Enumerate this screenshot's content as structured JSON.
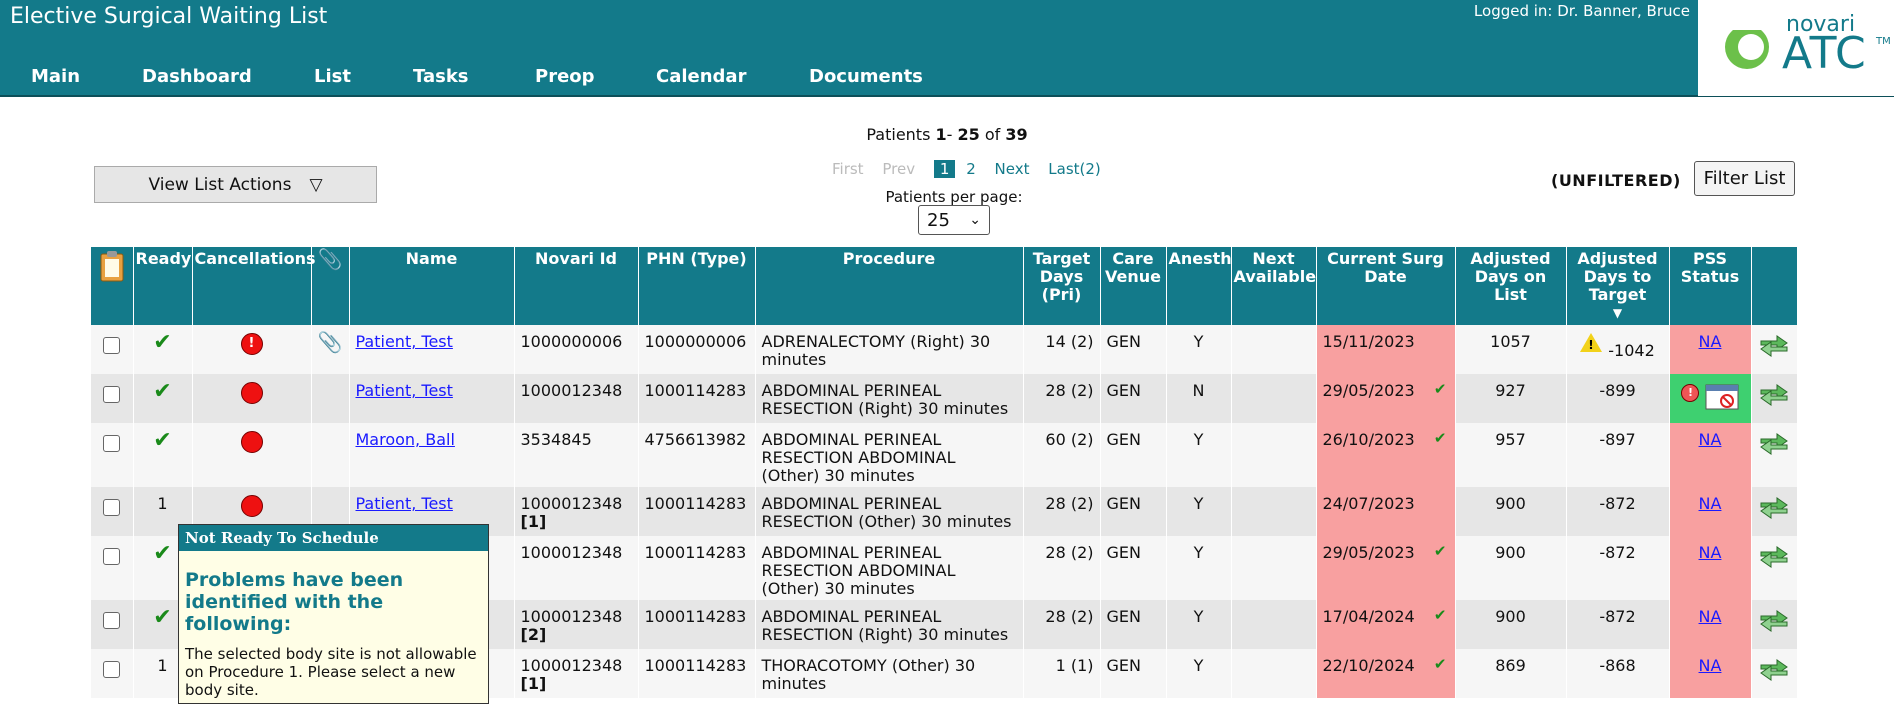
{
  "app": {
    "title": "Elective Surgical Waiting List",
    "logged_in": "Logged in: Dr. Banner, Bruce",
    "logo_top": "novari",
    "logo_bottom": "ATC",
    "logo_tm": "TM"
  },
  "nav": [
    "Main",
    "Dashboard",
    "List",
    "Tasks",
    "Preop",
    "Calendar",
    "Documents"
  ],
  "pager": {
    "label": "Patients",
    "from": "1",
    "to": "25",
    "of_word": "of",
    "total": "39",
    "first": "First",
    "prev": "Prev",
    "pages": [
      "1",
      "2"
    ],
    "next": "Next",
    "last": "Last(2)",
    "per_page_label": "Patients per page:",
    "per_page_value": "25"
  },
  "toolbar": {
    "view_actions": "View List Actions",
    "view_actions_icon": "triangle-down",
    "unfiltered": "(UNFILTERED)",
    "filter": "Filter List"
  },
  "columns": {
    "ready": "Ready",
    "cancellations": "Cancellations",
    "name": "Name",
    "novari_id": "Novari Id",
    "phn": "PHN (Type)",
    "procedure": "Procedure",
    "target_days": "Target Days (Pri)",
    "care_venue": "Care Venue",
    "anesth": "Anesth",
    "next_available": "Next Available",
    "current_surg_date": "Current Surg Date",
    "adjusted_days": "Adjusted Days on List",
    "adjusted_days_target": "Adjusted Days to Target",
    "pss_status": "PSS Status"
  },
  "rows": [
    {
      "ready": "check",
      "cancel": "!",
      "clip": true,
      "name": "Patient, Test",
      "novari": "1000000006",
      "novari_tag": "",
      "phn": "1000000006",
      "procedure": "ADRENALECTOMY (Right) 30 minutes",
      "target": "14 (2)",
      "venue": "GEN",
      "anesth": "Y",
      "surg_date": "15/11/2023",
      "surg_check": false,
      "adj_days": "1057",
      "adj_target": "-1042",
      "adj_warn": true,
      "pss": "NA",
      "pss_color": "pink"
    },
    {
      "ready": "check",
      "cancel": "",
      "clip": false,
      "name": "Patient, Test",
      "novari": "1000012348",
      "novari_tag": "",
      "phn": "1000114283",
      "procedure": "ABDOMINAL PERINEAL RESECTION (Right) 30 minutes",
      "target": "28 (2)",
      "venue": "GEN",
      "anesth": "N",
      "surg_date": "29/05/2023",
      "surg_check": true,
      "adj_days": "927",
      "adj_target": "-899",
      "adj_warn": false,
      "pss": "",
      "pss_color": "green"
    },
    {
      "ready": "check",
      "cancel": "",
      "clip": false,
      "name": "Maroon, Ball",
      "novari": "3534845",
      "novari_tag": "",
      "phn": "4756613982",
      "procedure": "ABDOMINAL PERINEAL RESECTION ABDOMINAL (Other) 30 minutes",
      "target": "60 (2)",
      "venue": "GEN",
      "anesth": "Y",
      "surg_date": "26/10/2023",
      "surg_check": true,
      "adj_days": "957",
      "adj_target": "-897",
      "adj_warn": false,
      "pss": "NA",
      "pss_color": "pink"
    },
    {
      "ready": "1",
      "cancel": "",
      "clip": false,
      "name": "Patient, Test",
      "novari": "1000012348",
      "novari_tag": "[1]",
      "phn": "1000114283",
      "procedure": "ABDOMINAL PERINEAL RESECTION (Other) 30 minutes",
      "target": "28 (2)",
      "venue": "GEN",
      "anesth": "Y",
      "surg_date": "24/07/2023",
      "surg_check": false,
      "adj_days": "900",
      "adj_target": "-872",
      "adj_warn": false,
      "pss": "NA",
      "pss_color": "pink"
    },
    {
      "ready": "check",
      "cancel": "",
      "clip": false,
      "name": "",
      "novari": "1000012348",
      "novari_tag": "",
      "phn": "1000114283",
      "procedure": "ABDOMINAL PERINEAL RESECTION ABDOMINAL (Other) 30 minutes",
      "target": "28 (2)",
      "venue": "GEN",
      "anesth": "Y",
      "surg_date": "29/05/2023",
      "surg_check": true,
      "adj_days": "900",
      "adj_target": "-872",
      "adj_warn": false,
      "pss": "NA",
      "pss_color": "pink"
    },
    {
      "ready": "check",
      "cancel": "",
      "clip": false,
      "name": "",
      "novari": "1000012348",
      "novari_tag": "[2]",
      "phn": "1000114283",
      "procedure": "ABDOMINAL PERINEAL RESECTION (Right) 30 minutes",
      "target": "28 (2)",
      "venue": "GEN",
      "anesth": "Y",
      "surg_date": "17/04/2024",
      "surg_check": true,
      "adj_days": "900",
      "adj_target": "-872",
      "adj_warn": false,
      "pss": "NA",
      "pss_color": "pink"
    },
    {
      "ready": "1",
      "cancel": "",
      "clip": false,
      "name": "",
      "novari": "1000012348",
      "novari_tag": "[1]",
      "phn": "1000114283",
      "procedure": "THORACOTOMY (Other) 30 minutes",
      "target": "1 (1)",
      "venue": "GEN",
      "anesth": "Y",
      "surg_date": "22/10/2024",
      "surg_check": true,
      "adj_days": "869",
      "adj_target": "-868",
      "adj_warn": false,
      "pss": "NA",
      "pss_color": "pink"
    }
  ],
  "tooltip": {
    "title": "Not Ready To Schedule",
    "heading": "Problems have been identified with the following:",
    "body": "The selected body site is not allowable on Procedure 1. Please select a new body site."
  },
  "colors": {
    "brand": "#137a8a",
    "overdue": "#f8a0a0",
    "ok": "#3ed070"
  }
}
